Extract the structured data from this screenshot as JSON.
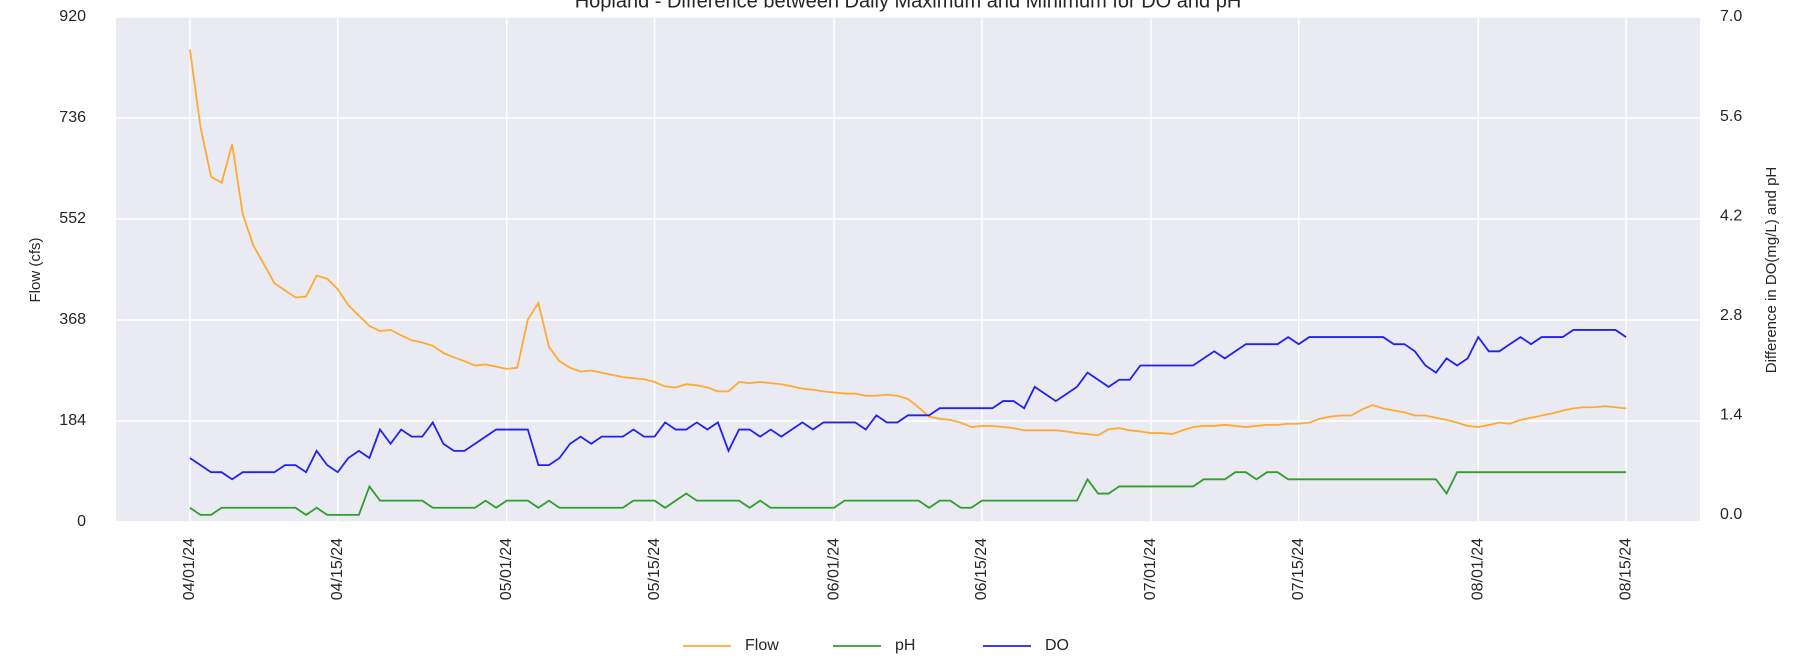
{
  "chart_data": {
    "type": "line",
    "title": "Hopland - Difference between Daily Maximum and Minimum for DO and pH",
    "ylabel": "Flow (cfs)",
    "y2label": "Difference in DO(mg/L) and pH",
    "x": [
      "2024-04-01",
      "2024-04-02",
      "2024-04-03",
      "2024-04-04",
      "2024-04-05",
      "2024-04-06",
      "2024-04-07",
      "2024-04-08",
      "2024-04-09",
      "2024-04-10",
      "2024-04-11",
      "2024-04-12",
      "2024-04-13",
      "2024-04-14",
      "2024-04-15",
      "2024-04-16",
      "2024-04-17",
      "2024-04-18",
      "2024-04-19",
      "2024-04-20",
      "2024-04-21",
      "2024-04-22",
      "2024-04-23",
      "2024-04-24",
      "2024-04-25",
      "2024-04-26",
      "2024-04-27",
      "2024-04-28",
      "2024-04-29",
      "2024-04-30",
      "2024-05-01",
      "2024-05-02",
      "2024-05-03",
      "2024-05-04",
      "2024-05-05",
      "2024-05-06",
      "2024-05-07",
      "2024-05-08",
      "2024-05-09",
      "2024-05-10",
      "2024-05-11",
      "2024-05-12",
      "2024-05-13",
      "2024-05-14",
      "2024-05-15",
      "2024-05-16",
      "2024-05-17",
      "2024-05-18",
      "2024-05-19",
      "2024-05-20",
      "2024-05-21",
      "2024-05-22",
      "2024-05-23",
      "2024-05-24",
      "2024-05-25",
      "2024-05-26",
      "2024-05-27",
      "2024-05-28",
      "2024-05-29",
      "2024-05-30",
      "2024-05-31",
      "2024-06-01",
      "2024-06-02",
      "2024-06-03",
      "2024-06-04",
      "2024-06-05",
      "2024-06-06",
      "2024-06-07",
      "2024-06-08",
      "2024-06-09",
      "2024-06-10",
      "2024-06-11",
      "2024-06-12",
      "2024-06-13",
      "2024-06-14",
      "2024-06-15",
      "2024-06-16",
      "2024-06-17",
      "2024-06-18",
      "2024-06-19",
      "2024-06-20",
      "2024-06-21",
      "2024-06-22",
      "2024-06-23",
      "2024-06-24",
      "2024-06-25",
      "2024-06-26",
      "2024-06-27",
      "2024-06-28",
      "2024-06-29",
      "2024-06-30",
      "2024-07-01",
      "2024-07-02",
      "2024-07-03",
      "2024-07-04",
      "2024-07-05",
      "2024-07-06",
      "2024-07-07",
      "2024-07-08",
      "2024-07-09",
      "2024-07-10",
      "2024-07-11",
      "2024-07-12",
      "2024-07-13",
      "2024-07-14",
      "2024-07-15",
      "2024-07-16",
      "2024-07-17",
      "2024-07-18",
      "2024-07-19",
      "2024-07-20",
      "2024-07-21",
      "2024-07-22",
      "2024-07-23",
      "2024-07-24",
      "2024-07-25",
      "2024-07-26",
      "2024-07-27",
      "2024-07-28",
      "2024-07-29",
      "2024-07-30",
      "2024-07-31",
      "2024-08-01",
      "2024-08-02",
      "2024-08-03",
      "2024-08-04",
      "2024-08-05",
      "2024-08-06",
      "2024-08-07",
      "2024-08-08",
      "2024-08-09",
      "2024-08-10",
      "2024-08-11",
      "2024-08-12",
      "2024-08-13",
      "2024-08-14",
      "2024-08-15"
    ],
    "series": [
      {
        "name": "Flow",
        "color": "#ffaa33",
        "axis": "y",
        "values": [
          861,
          720,
          629,
          618,
          688,
          561,
          504,
          470,
          435,
          422,
          409,
          411,
          449,
          443,
          424,
          395,
          376,
          357,
          348,
          350,
          340,
          331,
          327,
          321,
          308,
          300,
          293,
          285,
          287,
          283,
          279,
          281,
          369,
          399,
          319,
          293,
          281,
          274,
          276,
          272,
          268,
          264,
          262,
          260,
          255,
          247,
          245,
          251,
          249,
          245,
          238,
          238,
          255,
          253,
          255,
          253,
          251,
          247,
          243,
          241,
          238,
          236,
          234,
          234,
          230,
          230,
          232,
          230,
          224,
          209,
          192,
          188,
          186,
          181,
          173,
          175,
          175,
          173,
          171,
          167,
          167,
          167,
          167,
          165,
          162,
          160,
          158,
          169,
          171,
          167,
          165,
          162,
          162,
          160,
          167,
          173,
          175,
          175,
          177,
          175,
          173,
          175,
          177,
          177,
          179,
          179,
          181,
          188,
          192,
          194,
          194,
          205,
          213,
          207,
          203,
          200,
          194,
          194,
          190,
          186,
          181,
          175,
          173,
          177,
          181,
          179,
          186,
          190,
          194,
          198,
          203,
          207,
          209,
          209,
          211,
          209,
          207
        ]
      },
      {
        "name": "pH",
        "color": "#2e9e2e",
        "axis": "y2",
        "values": [
          0.1,
          0,
          0,
          0.1,
          0.1,
          0.1,
          0.1,
          0.1,
          0.1,
          0.1,
          0.1,
          0,
          0.1,
          0,
          0,
          0,
          0,
          0.4,
          0.2,
          0.2,
          0.2,
          0.2,
          0.2,
          0.1,
          0.1,
          0.1,
          0.1,
          0.1,
          0.2,
          0.1,
          0.2,
          0.2,
          0.2,
          0.1,
          0.2,
          0.1,
          0.1,
          0.1,
          0.1,
          0.1,
          0.1,
          0.1,
          0.2,
          0.2,
          0.2,
          0.1,
          0.2,
          0.3,
          0.2,
          0.2,
          0.2,
          0.2,
          0.2,
          0.1,
          0.2,
          0.1,
          0.1,
          0.1,
          0.1,
          0.1,
          0.1,
          0.1,
          0.2,
          0.2,
          0.2,
          0.2,
          0.2,
          0.2,
          0.2,
          0.2,
          0.1,
          0.2,
          0.2,
          0.1,
          0.1,
          0.2,
          0.2,
          0.2,
          0.2,
          0.2,
          0.2,
          0.2,
          0.2,
          0.2,
          0.2,
          0.5,
          0.3,
          0.3,
          0.4,
          0.4,
          0.4,
          0.4,
          0.4,
          0.4,
          0.4,
          0.4,
          0.5,
          0.5,
          0.5,
          0.6,
          0.6,
          0.5,
          0.6,
          0.6,
          0.5,
          0.5,
          0.5,
          0.5,
          0.5,
          0.5,
          0.5,
          0.5,
          0.5,
          0.5,
          0.5,
          0.5,
          0.5,
          0.5,
          0.5,
          0.3,
          0.6,
          0.6,
          0.6,
          0.6,
          0.6,
          0.6,
          0.6,
          0.6,
          0.6,
          0.6,
          0.6,
          0.6,
          0.6,
          0.6,
          0.6,
          0.6,
          0.6
        ]
      },
      {
        "name": "DO",
        "color": "#2222ee",
        "axis": "y2",
        "values": [
          0.8,
          0.7,
          0.6,
          0.6,
          0.5,
          0.6,
          0.6,
          0.6,
          0.6,
          0.7,
          0.7,
          0.6,
          0.9,
          0.7,
          0.6,
          0.8,
          0.9,
          0.8,
          1.2,
          1.0,
          1.2,
          1.1,
          1.1,
          1.3,
          1.0,
          0.9,
          0.9,
          1.0,
          1.1,
          1.2,
          1.2,
          1.2,
          1.2,
          0.7,
          0.7,
          0.8,
          1.0,
          1.1,
          1.0,
          1.1,
          1.1,
          1.1,
          1.2,
          1.1,
          1.1,
          1.3,
          1.2,
          1.2,
          1.3,
          1.2,
          1.3,
          0.9,
          1.2,
          1.2,
          1.1,
          1.2,
          1.1,
          1.2,
          1.3,
          1.2,
          1.3,
          1.3,
          1.3,
          1.3,
          1.2,
          1.4,
          1.3,
          1.3,
          1.4,
          1.4,
          1.4,
          1.5,
          1.5,
          1.5,
          1.5,
          1.5,
          1.5,
          1.6,
          1.6,
          1.5,
          1.8,
          1.7,
          1.6,
          1.7,
          1.8,
          2.0,
          1.9,
          1.8,
          1.9,
          1.9,
          2.1,
          2.1,
          2.1,
          2.1,
          2.1,
          2.1,
          2.2,
          2.3,
          2.2,
          2.3,
          2.4,
          2.4,
          2.4,
          2.4,
          2.5,
          2.4,
          2.5,
          2.5,
          2.5,
          2.5,
          2.5,
          2.5,
          2.5,
          2.5,
          2.4,
          2.4,
          2.3,
          2.1,
          2.0,
          2.2,
          2.1,
          2.2,
          2.5,
          2.3,
          2.3,
          2.4,
          2.5,
          2.4,
          2.5,
          2.5,
          2.5,
          2.6,
          2.6,
          2.6,
          2.6,
          2.6,
          2.5
        ]
      }
    ],
    "xlim": [
      "2024-03-25",
      "2024-08-22"
    ],
    "xticks": [
      {
        "value": "2024-04-01",
        "label": "04/01/24"
      },
      {
        "value": "2024-04-15",
        "label": "04/15/24"
      },
      {
        "value": "2024-05-01",
        "label": "05/01/24"
      },
      {
        "value": "2024-05-15",
        "label": "05/15/24"
      },
      {
        "value": "2024-06-01",
        "label": "06/01/24"
      },
      {
        "value": "2024-06-15",
        "label": "06/15/24"
      },
      {
        "value": "2024-07-01",
        "label": "07/01/24"
      },
      {
        "value": "2024-07-15",
        "label": "07/15/24"
      },
      {
        "value": "2024-08-01",
        "label": "08/01/24"
      },
      {
        "value": "2024-08-15",
        "label": "08/15/24"
      }
    ],
    "ylim": [
      0,
      920
    ],
    "yticks": [
      0,
      184,
      368,
      552,
      736,
      920
    ],
    "y2lim": [
      -0.1,
      7.0
    ],
    "y2ticks": [
      {
        "value": 0,
        "label": "0.0"
      },
      1.4,
      2.8,
      4.2,
      5.6,
      {
        "value": 7,
        "label": "7.0"
      }
    ],
    "grid": true,
    "legend": "bottom"
  }
}
